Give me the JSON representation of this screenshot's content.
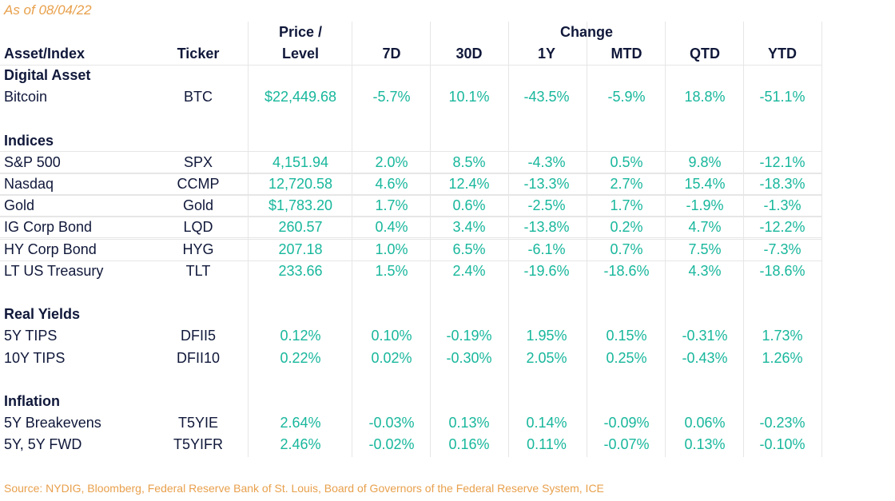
{
  "as_of": "As of 08/04/22",
  "headers": {
    "asset": "Asset/Index",
    "ticker": "Ticker",
    "price_line1": "Price /",
    "price_line2": "Level",
    "change": "Change",
    "cols": [
      "7D",
      "30D",
      "1Y",
      "MTD",
      "QTD",
      "YTD"
    ]
  },
  "sections": [
    {
      "title": "Digital Asset",
      "rows": [
        {
          "name": "Bitcoin",
          "ticker": "BTC",
          "price": "$22,449.68",
          "values": [
            "-5.7%",
            "10.1%",
            "-43.5%",
            "-5.9%",
            "18.8%",
            "-51.1%"
          ]
        }
      ]
    },
    {
      "title": "Indices",
      "rows": [
        {
          "name": "S&P 500",
          "ticker": "SPX",
          "price": "4,151.94",
          "values": [
            "2.0%",
            "8.5%",
            "-4.3%",
            "0.5%",
            "9.8%",
            "-12.1%"
          ]
        },
        {
          "name": "Nasdaq",
          "ticker": "CCMP",
          "price": "12,720.58",
          "values": [
            "4.6%",
            "12.4%",
            "-13.3%",
            "2.7%",
            "15.4%",
            "-18.3%"
          ]
        },
        {
          "name": "Gold",
          "ticker": "Gold",
          "price": "$1,783.20",
          "values": [
            "1.7%",
            "0.6%",
            "-2.5%",
            "1.7%",
            "-1.9%",
            "-1.3%"
          ]
        },
        {
          "name": "IG Corp Bond",
          "ticker": "LQD",
          "price": "260.57",
          "values": [
            "0.4%",
            "3.4%",
            "-13.8%",
            "0.2%",
            "4.7%",
            "-12.2%"
          ]
        },
        {
          "name": "HY Corp Bond",
          "ticker": "HYG",
          "price": "207.18",
          "values": [
            "1.0%",
            "6.5%",
            "-6.1%",
            "0.7%",
            "7.5%",
            "-7.3%"
          ]
        },
        {
          "name": "LT US Treasury",
          "ticker": "TLT",
          "price": "233.66",
          "values": [
            "1.5%",
            "2.4%",
            "-19.6%",
            "-18.6%",
            "4.3%",
            "-18.6%"
          ]
        }
      ]
    },
    {
      "title": "Real Yields",
      "rows": [
        {
          "name": "5Y TIPS",
          "ticker": "DFII5",
          "price": "0.12%",
          "values": [
            "0.10%",
            "-0.19%",
            "1.95%",
            "0.15%",
            "-0.31%",
            "1.73%"
          ]
        },
        {
          "name": "10Y TIPS",
          "ticker": "DFII10",
          "price": "0.22%",
          "values": [
            "0.02%",
            "-0.30%",
            "2.05%",
            "0.25%",
            "-0.43%",
            "1.26%"
          ]
        }
      ]
    },
    {
      "title": "Inflation",
      "rows": [
        {
          "name": "5Y Breakevens",
          "ticker": "T5YIE",
          "price": "2.64%",
          "values": [
            "-0.03%",
            "0.13%",
            "0.14%",
            "-0.09%",
            "0.06%",
            "-0.23%"
          ]
        },
        {
          "name": "5Y, 5Y FWD",
          "ticker": "T5YIFR",
          "price": "2.46%",
          "values": [
            "-0.02%",
            "0.16%",
            "0.11%",
            "-0.07%",
            "0.13%",
            "-0.10%"
          ]
        }
      ]
    }
  ],
  "source": "Source: NYDIG, Bloomberg, Federal Reserve Bank of St. Louis, Board of Governors of the Federal Reserve System, ICE"
}
